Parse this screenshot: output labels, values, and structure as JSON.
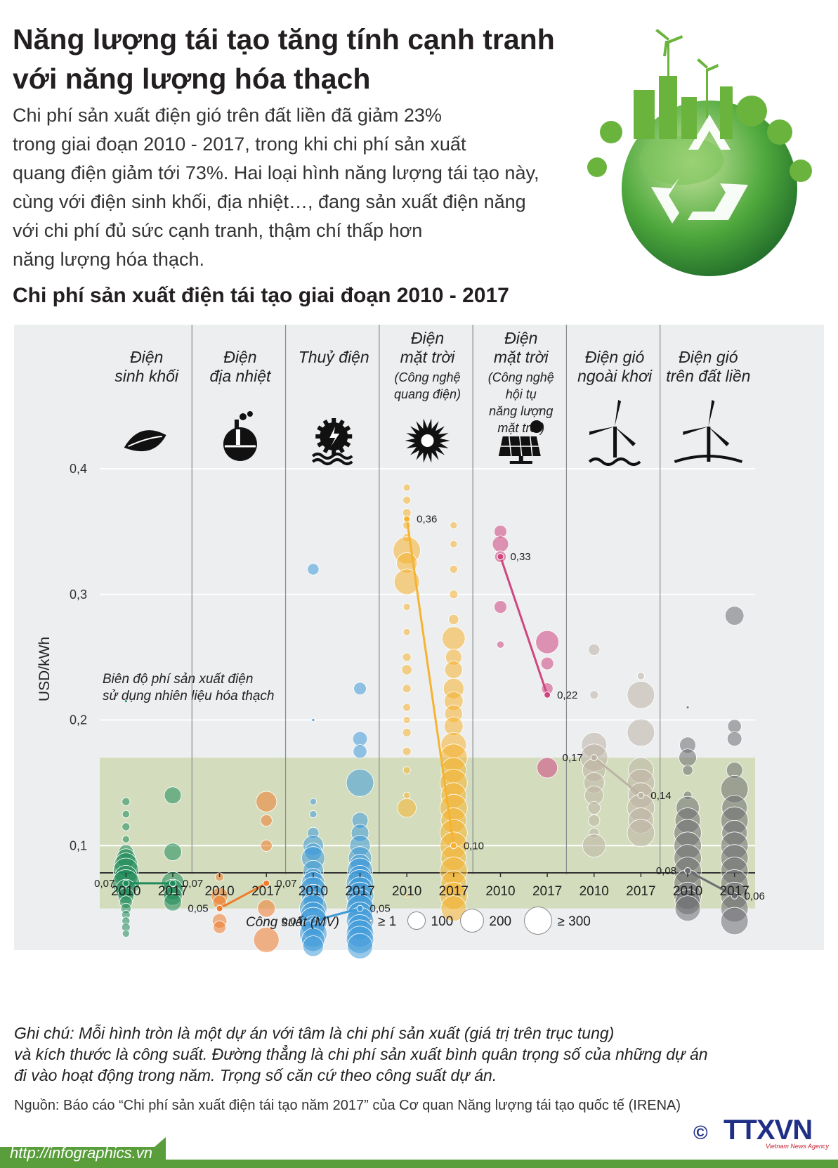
{
  "header": {
    "title": "Năng lượng tái tạo tăng tính cạnh tranh với năng lượng hóa thạch",
    "intro": "Chi phí sản xuất điện gió trên đất liền đã giảm 23%\ntrong giai đoạn 2010 - 2017, trong khi chi phí sản xuất\nquang điện giảm tới 73%. Hai loại hình năng lượng tái tạo này,\ncùng với điện sinh khối, địa nhiệt…, đang sản xuất điện năng\nvới chi phí đủ sức cạnh tranh, thậm chí thấp hơn\nnăng lượng hóa thạch.",
    "subtitle": "Chi phí sản xuất điện tái tạo giai đoạn 2010 - 2017"
  },
  "colors": {
    "panel_bg": "#eceef0",
    "fossil_band": "#cfd9b4",
    "biomass": "#1f8a5a",
    "geothermal": "#f07c2c",
    "hydro": "#3f9ad8",
    "solar_pv": "#f6b330",
    "csp": "#cf4680",
    "offshore_wind": "#bdb3a4",
    "onshore_wind": "#6d6e71",
    "footer": "#5a9e3c"
  },
  "chart_data": {
    "type": "scatter",
    "ylabel": "USD/kWh",
    "ylim": [
      0.0,
      0.4
    ],
    "yticks": [
      0.1,
      0.2,
      0.3,
      0.4
    ],
    "ytick_labels": [
      "0,1",
      "0,2",
      "0,3",
      "0,4"
    ],
    "band": {
      "label": "Biên độ phí sản xuất điện sử dụng nhiên liệu hóa thạch",
      "range": [
        0.05,
        0.17
      ]
    },
    "legend": {
      "title": "Công suất (MV)",
      "items": [
        {
          "label": "≥ 1",
          "capacity": 1
        },
        {
          "label": "100",
          "capacity": 100
        },
        {
          "label": "200",
          "capacity": 200
        },
        {
          "label": "≥ 300",
          "capacity": 300
        }
      ]
    },
    "categories": [
      {
        "name": "Điện sinh khối",
        "lines": [
          "Điện",
          "sinh khối"
        ],
        "icon": "leaf-icon",
        "color_key": "biomass",
        "years": [
          "2010",
          "2017"
        ],
        "avg": [
          0.07,
          0.07
        ],
        "avg_labels": [
          "0,07",
          "0,07"
        ]
      },
      {
        "name": "Điện địa nhiệt",
        "lines": [
          "Điện",
          "địa nhiệt"
        ],
        "icon": "geothermal-icon",
        "color_key": "geothermal",
        "years": [
          "2010",
          "2017"
        ],
        "avg": [
          0.05,
          0.07
        ],
        "avg_labels": [
          "0,05",
          "0,07"
        ]
      },
      {
        "name": "Thuỷ điện",
        "lines": [
          "Thuỷ điện"
        ],
        "icon": "hydro-icon",
        "color_key": "hydro",
        "years": [
          "2010",
          "2017"
        ],
        "avg": [
          0.04,
          0.05
        ],
        "avg_labels": [
          "0,04",
          "0,05"
        ]
      },
      {
        "name": "Điện mặt trời (Công nghệ quang điện)",
        "lines": [
          "Điện",
          "mặt trời",
          "(Công nghệ",
          "quang điện)"
        ],
        "icon": "sun-icon",
        "color_key": "solar_pv",
        "years": [
          "2010",
          "2017"
        ],
        "avg": [
          0.36,
          0.1
        ],
        "avg_labels": [
          "0,36",
          "0,10"
        ]
      },
      {
        "name": "Điện mặt trời (Công nghệ hội tụ năng lượng mặt trời)",
        "lines": [
          "Điện",
          "mặt trời",
          "(Công nghệ",
          "hội tụ",
          "năng lượng",
          "mặt trời)"
        ],
        "icon": "solar-panel-icon",
        "color_key": "csp",
        "years": [
          "2010",
          "2017"
        ],
        "avg": [
          0.33,
          0.22
        ],
        "avg_labels": [
          "0,33",
          "0,22"
        ]
      },
      {
        "name": "Điện gió ngoài khơi",
        "lines": [
          "Điện gió",
          "ngoài khơi"
        ],
        "icon": "offshore-turbine-icon",
        "color_key": "offshore_wind",
        "years": [
          "2010",
          "2017"
        ],
        "avg": [
          0.17,
          0.14
        ],
        "avg_labels": [
          "0,17",
          "0,14"
        ]
      },
      {
        "name": "Điện gió trên đất liền",
        "lines": [
          "Điện gió",
          "trên đất liền"
        ],
        "icon": "onshore-turbine-icon",
        "color_key": "onshore_wind",
        "years": [
          "2010",
          "2017"
        ],
        "avg": [
          0.08,
          0.06
        ],
        "avg_labels": [
          "0,08",
          "0,06"
        ]
      }
    ],
    "points": [
      [
        [
          [
            0.215,
            1
          ],
          [
            0.135,
            8
          ],
          [
            0.125,
            6
          ],
          [
            0.115,
            8
          ],
          [
            0.105,
            5
          ],
          [
            0.095,
            60
          ],
          [
            0.09,
            120
          ],
          [
            0.085,
            200
          ],
          [
            0.08,
            250
          ],
          [
            0.075,
            200
          ],
          [
            0.07,
            300
          ],
          [
            0.065,
            150
          ],
          [
            0.06,
            80
          ],
          [
            0.055,
            40
          ],
          [
            0.05,
            20
          ],
          [
            0.045,
            10
          ],
          [
            0.04,
            8
          ],
          [
            0.035,
            10
          ],
          [
            0.03,
            5
          ]
        ],
        [
          [
            0.14,
            90
          ],
          [
            0.095,
            100
          ],
          [
            0.07,
            200
          ],
          [
            0.065,
            150
          ],
          [
            0.06,
            120
          ],
          [
            0.055,
            100
          ]
        ]
      ],
      [
        [
          [
            0.075,
            10
          ],
          [
            0.06,
            90
          ],
          [
            0.055,
            50
          ],
          [
            0.04,
            60
          ],
          [
            0.035,
            40
          ]
        ],
        [
          [
            0.135,
            150
          ],
          [
            0.12,
            30
          ],
          [
            0.1,
            30
          ],
          [
            0.05,
            100
          ],
          [
            0.025,
            250
          ]
        ]
      ],
      [
        [
          [
            0.32,
            30
          ],
          [
            0.2,
            1
          ],
          [
            0.135,
            3
          ],
          [
            0.125,
            5
          ],
          [
            0.11,
            30
          ],
          [
            0.1,
            150
          ],
          [
            0.095,
            100
          ],
          [
            0.09,
            200
          ],
          [
            0.08,
            150
          ],
          [
            0.075,
            100
          ],
          [
            0.07,
            200
          ],
          [
            0.065,
            250
          ],
          [
            0.06,
            200
          ],
          [
            0.055,
            150
          ],
          [
            0.05,
            300
          ],
          [
            0.045,
            250
          ],
          [
            0.04,
            300
          ],
          [
            0.035,
            200
          ],
          [
            0.03,
            300
          ],
          [
            0.025,
            200
          ],
          [
            0.02,
            150
          ]
        ],
        [
          [
            0.225,
            40
          ],
          [
            0.185,
            60
          ],
          [
            0.175,
            50
          ],
          [
            0.15,
            300
          ],
          [
            0.12,
            80
          ],
          [
            0.11,
            100
          ],
          [
            0.1,
            150
          ],
          [
            0.09,
            200
          ],
          [
            0.085,
            150
          ],
          [
            0.08,
            250
          ],
          [
            0.075,
            200
          ],
          [
            0.07,
            300
          ],
          [
            0.065,
            250
          ],
          [
            0.06,
            300
          ],
          [
            0.055,
            250
          ],
          [
            0.05,
            300
          ],
          [
            0.045,
            250
          ],
          [
            0.04,
            300
          ],
          [
            0.035,
            250
          ],
          [
            0.03,
            300
          ],
          [
            0.025,
            300
          ],
          [
            0.02,
            250
          ]
        ]
      ],
      [
        [
          [
            0.385,
            5
          ],
          [
            0.375,
            8
          ],
          [
            0.365,
            10
          ],
          [
            0.355,
            8
          ],
          [
            0.345,
            10
          ],
          [
            0.335,
            300
          ],
          [
            0.325,
            150
          ],
          [
            0.31,
            250
          ],
          [
            0.29,
            5
          ],
          [
            0.27,
            5
          ],
          [
            0.25,
            10
          ],
          [
            0.24,
            20
          ],
          [
            0.225,
            10
          ],
          [
            0.21,
            8
          ],
          [
            0.2,
            5
          ],
          [
            0.19,
            10
          ],
          [
            0.175,
            10
          ],
          [
            0.16,
            5
          ],
          [
            0.14,
            3
          ],
          [
            0.13,
            120
          ],
          [
            0.06,
            1
          ]
        ],
        [
          [
            0.355,
            5
          ],
          [
            0.34,
            5
          ],
          [
            0.32,
            8
          ],
          [
            0.3,
            10
          ],
          [
            0.28,
            20
          ],
          [
            0.265,
            200
          ],
          [
            0.25,
            80
          ],
          [
            0.24,
            100
          ],
          [
            0.225,
            150
          ],
          [
            0.215,
            120
          ],
          [
            0.205,
            100
          ],
          [
            0.195,
            120
          ],
          [
            0.18,
            250
          ],
          [
            0.17,
            300
          ],
          [
            0.16,
            250
          ],
          [
            0.15,
            300
          ],
          [
            0.14,
            250
          ],
          [
            0.13,
            300
          ],
          [
            0.12,
            250
          ],
          [
            0.11,
            300
          ],
          [
            0.1,
            300
          ],
          [
            0.09,
            250
          ],
          [
            0.08,
            300
          ],
          [
            0.07,
            250
          ],
          [
            0.06,
            300
          ],
          [
            0.05,
            250
          ]
        ]
      ],
      [
        [
          [
            0.35,
            40
          ],
          [
            0.34,
            80
          ],
          [
            0.33,
            30
          ],
          [
            0.29,
            40
          ],
          [
            0.26,
            5
          ]
        ],
        [
          [
            0.262,
            200
          ],
          [
            0.245,
            40
          ],
          [
            0.225,
            30
          ],
          [
            0.162,
            150
          ]
        ]
      ],
      [
        [
          [
            0.256,
            30
          ],
          [
            0.22,
            10
          ],
          [
            0.18,
            250
          ],
          [
            0.17,
            300
          ],
          [
            0.16,
            200
          ],
          [
            0.15,
            150
          ],
          [
            0.14,
            120
          ],
          [
            0.13,
            40
          ],
          [
            0.12,
            30
          ],
          [
            0.11,
            20
          ],
          [
            0.1,
            200
          ]
        ],
        [
          [
            0.235,
            5
          ],
          [
            0.22,
            300
          ],
          [
            0.19,
            300
          ],
          [
            0.16,
            250
          ],
          [
            0.15,
            300
          ],
          [
            0.14,
            250
          ],
          [
            0.13,
            300
          ],
          [
            0.12,
            250
          ],
          [
            0.11,
            300
          ]
        ]
      ],
      [
        [
          [
            0.21,
            1
          ],
          [
            0.18,
            80
          ],
          [
            0.17,
            100
          ],
          [
            0.16,
            20
          ],
          [
            0.14,
            10
          ],
          [
            0.13,
            200
          ],
          [
            0.12,
            250
          ],
          [
            0.11,
            300
          ],
          [
            0.1,
            300
          ],
          [
            0.09,
            300
          ],
          [
            0.08,
            300
          ],
          [
            0.07,
            300
          ],
          [
            0.06,
            300
          ],
          [
            0.055,
            250
          ],
          [
            0.05,
            250
          ]
        ],
        [
          [
            0.283,
            120
          ],
          [
            0.195,
            50
          ],
          [
            0.185,
            60
          ],
          [
            0.16,
            80
          ],
          [
            0.145,
            300
          ],
          [
            0.13,
            250
          ],
          [
            0.12,
            300
          ],
          [
            0.11,
            250
          ],
          [
            0.1,
            300
          ],
          [
            0.09,
            300
          ],
          [
            0.08,
            300
          ],
          [
            0.07,
            300
          ],
          [
            0.06,
            300
          ],
          [
            0.05,
            300
          ],
          [
            0.04,
            300
          ]
        ]
      ]
    ]
  },
  "note": "Ghi chú: Mỗi hình tròn là một dự án với tâm là chi phí sản xuất (giá trị trên trục tung)\nvà kích thước là công suất. Đường thẳng là chi phí sản xuất bình quân trọng số của những dự án\nđi vào hoạt động trong năm. Trọng số căn cứ theo công suất dự án.",
  "source": "Nguồn: Báo cáo “Chi phí sản xuất điện tái tạo năm 2017” của Cơ quan Năng lượng tái tạo quốc tế (IRENA)",
  "footer": {
    "url": "http://infographics.vn",
    "logo": "TTXVN",
    "logo_sub": "Vietnam News Agency",
    "copyright": "©"
  }
}
